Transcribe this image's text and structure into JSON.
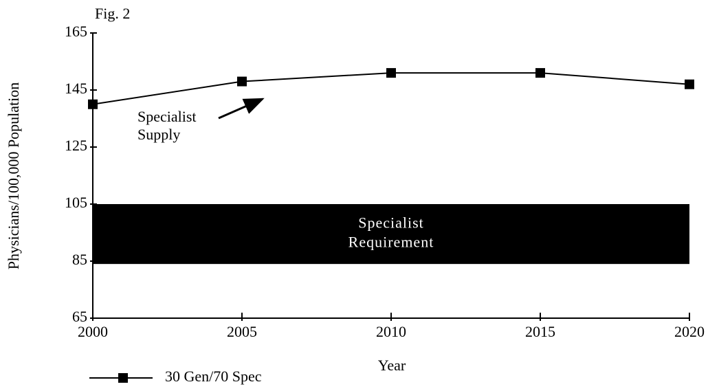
{
  "chart_data": {
    "type": "line",
    "title": "Fig. 2",
    "x_label": "Year",
    "y_label": "Physicians/100,000 Population",
    "x": [
      2000,
      2005,
      2010,
      2015,
      2020
    ],
    "series": [
      {
        "name": "30 Gen/70 Spec",
        "color": "#000000",
        "values": [
          140,
          148,
          151,
          151,
          147
        ]
      }
    ],
    "xlim": [
      2000,
      2020
    ],
    "xticks": [
      2000,
      2005,
      2010,
      2015,
      2020
    ],
    "ylim": [
      65,
      165
    ],
    "yticks": [
      65,
      85,
      105,
      125,
      145,
      165
    ],
    "band": {
      "label": [
        "Specialist",
        "Requirement"
      ],
      "low": 84,
      "high": 105,
      "color": "#000000"
    },
    "supply_label": [
      "Specialist",
      "Supply"
    ]
  }
}
